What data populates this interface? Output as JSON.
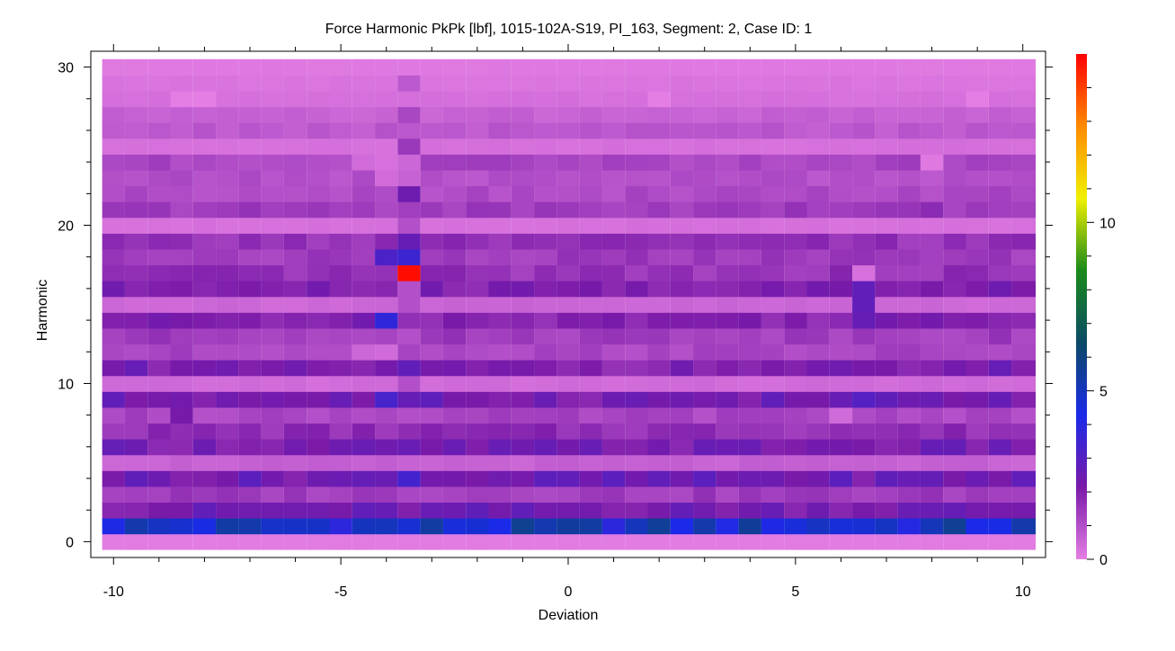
{
  "chart_data": {
    "type": "heatmap",
    "title": "Force Harmonic PkPk [lbf], 1015-102A-S19, PI_163, Segment: 2, Case ID: 1",
    "xlabel": "Deviation",
    "ylabel": "Harmonic",
    "xlim": [
      -10.5,
      10.5
    ],
    "ylim": [
      -1,
      31
    ],
    "x_ticks": [
      "-10",
      "-5",
      "0",
      "5",
      "10"
    ],
    "y_ticks": [
      "0",
      "10",
      "20",
      "30"
    ],
    "colorbar": {
      "ticks": [
        "0",
        "5",
        "10"
      ],
      "range": [
        0,
        15
      ],
      "colors": [
        "#e47ee4",
        "#7a1aa8",
        "#1a2ae8",
        "#0b4a66",
        "#1a8a1a",
        "#f0f000",
        "#ff8a00",
        "#ff0000"
      ]
    },
    "x": [
      -10,
      -9.5,
      -9,
      -8.5,
      -8,
      -7.5,
      -7,
      -6.5,
      -6,
      -5.5,
      -5,
      -4.5,
      -4,
      -3.5,
      -3,
      -2.5,
      -2,
      -1.5,
      -1,
      -0.5,
      0,
      0.5,
      1,
      1.5,
      2,
      2.5,
      3,
      3.5,
      4,
      4.5,
      5,
      5.5,
      6,
      6.5,
      7,
      7.5,
      8,
      8.5,
      9,
      9.5,
      10
    ],
    "harmonics": [
      0,
      1,
      2,
      3,
      4,
      5,
      6,
      7,
      8,
      9,
      10,
      11,
      12,
      13,
      14,
      15,
      16,
      17,
      18,
      19,
      20,
      21,
      22,
      23,
      24,
      25,
      26,
      27,
      28,
      29,
      30
    ],
    "row_levels": [
      0.05,
      4.8,
      2.3,
      1.4,
      2.4,
      0.6,
      2.2,
      1.7,
      1.2,
      2.3,
      0.4,
      2.0,
      1.2,
      1.4,
      2.0,
      0.5,
      2.0,
      1.6,
      1.4,
      1.6,
      0.3,
      1.4,
      1.1,
      1.0,
      1.2,
      0.3,
      0.8,
      0.6,
      0.3,
      0.2,
      0.1
    ],
    "anomalies": [
      {
        "deviation": -3.5,
        "harmonic": 17,
        "value": 14.8
      },
      {
        "deviation": -3.5,
        "harmonic": 18,
        "value": 3.5
      },
      {
        "deviation": -3.5,
        "harmonic": 19,
        "value": 2.6
      },
      {
        "deviation": -4,
        "harmonic": 18,
        "value": 3.2
      },
      {
        "deviation": -3.5,
        "harmonic": 22,
        "value": 2.4
      },
      {
        "deviation": -4,
        "harmonic": 14,
        "value": 3.8
      },
      {
        "deviation": -4,
        "harmonic": 9,
        "value": 3.3
      },
      {
        "deviation": 6.5,
        "harmonic": 9,
        "value": 3.0
      },
      {
        "deviation": -3.5,
        "harmonic": 4,
        "value": 3.4
      },
      {
        "deviation": 6.5,
        "harmonic": 14,
        "value": 2.6
      },
      {
        "deviation": 6.5,
        "harmonic": 15,
        "value": 2.7
      },
      {
        "deviation": 6.5,
        "harmonic": 16,
        "value": 2.7
      },
      {
        "deviation": 6.5,
        "harmonic": 17,
        "value": 0.3
      },
      {
        "deviation": -3.5,
        "harmonic": 11,
        "value": 2.7
      },
      {
        "deviation": -4,
        "harmonic": 12,
        "value": 0.4
      },
      {
        "deviation": -4.5,
        "harmonic": 12,
        "value": 0.5
      },
      {
        "deviation": -3.5,
        "harmonic": 13,
        "value": 1.0
      },
      {
        "deviation": -3.5,
        "harmonic": 15,
        "value": 1.0
      },
      {
        "deviation": -3.5,
        "harmonic": 16,
        "value": 1.0
      },
      {
        "deviation": -3.5,
        "harmonic": 10,
        "value": 1.0
      },
      {
        "deviation": -3.5,
        "harmonic": 20,
        "value": 1.0
      },
      {
        "deviation": -3.5,
        "harmonic": 23,
        "value": 0.6
      },
      {
        "deviation": -3.5,
        "harmonic": 24,
        "value": 0.5
      },
      {
        "deviation": -3.5,
        "harmonic": 25,
        "value": 1.5
      },
      {
        "deviation": -3.5,
        "harmonic": 27,
        "value": 1.2
      },
      {
        "deviation": -3.5,
        "harmonic": 29,
        "value": 0.8
      },
      {
        "deviation": 8,
        "harmonic": 24,
        "value": 0.1
      },
      {
        "deviation": 8,
        "harmonic": 21,
        "value": 1.8
      },
      {
        "deviation": -9.5,
        "harmonic": 11,
        "value": 2.6
      },
      {
        "deviation": -8.5,
        "harmonic": 8,
        "value": 2.2
      },
      {
        "deviation": 9.5,
        "harmonic": 11,
        "value": 2.6
      },
      {
        "deviation": 9.5,
        "harmonic": 16,
        "value": 2.4
      },
      {
        "deviation": 6,
        "harmonic": 8,
        "value": 0.4
      },
      {
        "deviation": -4.5,
        "harmonic": 24,
        "value": 0.4
      },
      {
        "deviation": -4,
        "harmonic": 24,
        "value": 0.3
      },
      {
        "deviation": -4,
        "harmonic": 23,
        "value": 0.4
      },
      {
        "deviation": -8.5,
        "harmonic": 28,
        "value": 0.0
      },
      {
        "deviation": -8,
        "harmonic": 28,
        "value": 0.0
      },
      {
        "deviation": 2,
        "harmonic": 28,
        "value": 0.0
      },
      {
        "deviation": 9,
        "harmonic": 28,
        "value": 0.0
      }
    ]
  }
}
